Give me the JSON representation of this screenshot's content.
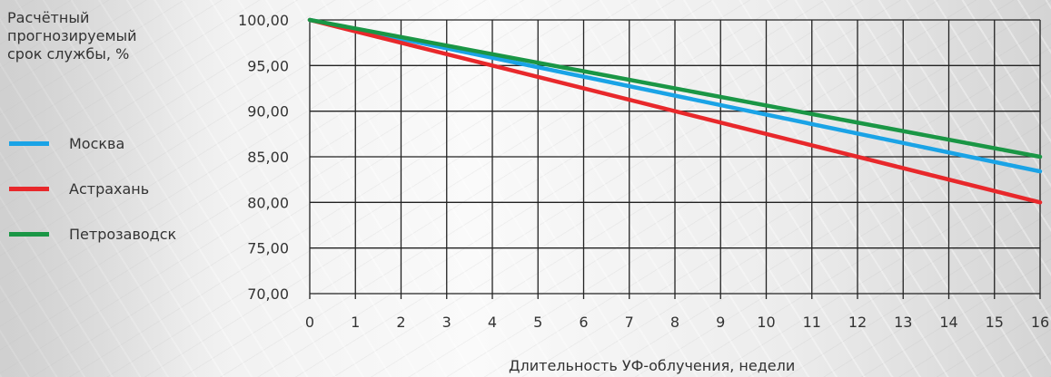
{
  "chart_data": {
    "type": "line",
    "ylabel": "Расчётный\nпрогнозируемый\nсрок службы, %",
    "xlabel": "Длительность УФ-облучения, недели",
    "x": [
      0,
      16
    ],
    "xlim": [
      0,
      16
    ],
    "ylim": [
      70,
      100
    ],
    "x_ticks": [
      "0",
      "1",
      "2",
      "3",
      "4",
      "5",
      "6",
      "7",
      "8",
      "9",
      "10",
      "11",
      "12",
      "13",
      "14",
      "15",
      "16"
    ],
    "y_ticks": [
      "100,00",
      "95,00",
      "90,00",
      "85,00",
      "80,00",
      "75,00",
      "70,00"
    ],
    "grid": true,
    "legend_position": "left",
    "series": [
      {
        "name": "Москва",
        "color": "#1aa3e6",
        "values": [
          100,
          83.4
        ]
      },
      {
        "name": "Астрахань",
        "color": "#e8282b",
        "values": [
          100,
          80.0
        ]
      },
      {
        "name": "Петрозаводск",
        "color": "#1a9645",
        "values": [
          100,
          85.0
        ]
      }
    ]
  }
}
